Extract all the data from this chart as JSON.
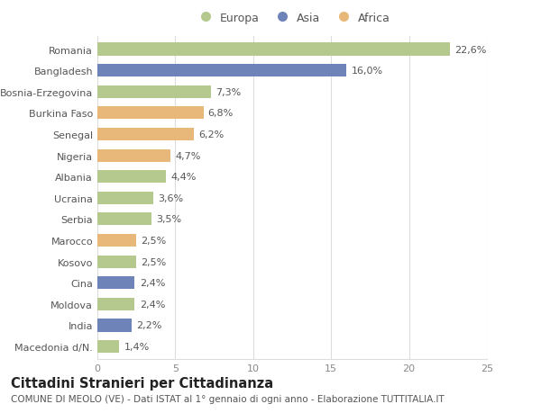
{
  "countries": [
    "Romania",
    "Bangladesh",
    "Bosnia-Erzegovina",
    "Burkina Faso",
    "Senegal",
    "Nigeria",
    "Albania",
    "Ucraina",
    "Serbia",
    "Marocco",
    "Kosovo",
    "Cina",
    "Moldova",
    "India",
    "Macedonia d/N."
  ],
  "values": [
    22.6,
    16.0,
    7.3,
    6.8,
    6.2,
    4.7,
    4.4,
    3.6,
    3.5,
    2.5,
    2.5,
    2.4,
    2.4,
    2.2,
    1.4
  ],
  "labels": [
    "22,6%",
    "16,0%",
    "7,3%",
    "6,8%",
    "6,2%",
    "4,7%",
    "4,4%",
    "3,6%",
    "3,5%",
    "2,5%",
    "2,5%",
    "2,4%",
    "2,4%",
    "2,2%",
    "1,4%"
  ],
  "continents": [
    "Europa",
    "Asia",
    "Europa",
    "Africa",
    "Africa",
    "Africa",
    "Europa",
    "Europa",
    "Europa",
    "Africa",
    "Europa",
    "Asia",
    "Europa",
    "Asia",
    "Europa"
  ],
  "colors": {
    "Europa": "#b5c98e",
    "Asia": "#6e83b7",
    "Africa": "#e8b87a"
  },
  "xlim": [
    0,
    25
  ],
  "xticks": [
    0,
    5,
    10,
    15,
    20,
    25
  ],
  "title": "Cittadini Stranieri per Cittadinanza",
  "subtitle": "COMUNE DI MEOLO (VE) - Dati ISTAT al 1° gennaio di ogni anno - Elaborazione TUTTITALIA.IT",
  "background_color": "#ffffff",
  "grid_color": "#dddddd",
  "bar_height": 0.6,
  "label_fontsize": 8,
  "ytick_fontsize": 8,
  "xtick_fontsize": 8,
  "title_fontsize": 10.5,
  "subtitle_fontsize": 7.5
}
